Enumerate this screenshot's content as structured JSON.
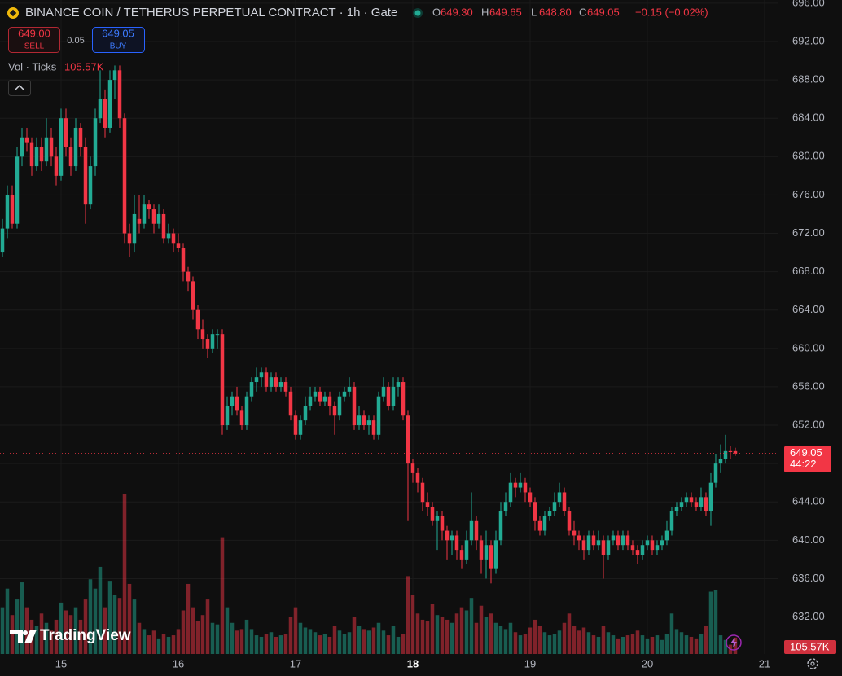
{
  "chart_data": {
    "type": "candlestick",
    "title": "BINANCE COIN / TETHERUS PERPETUAL CONTRACT · 1h · Gate",
    "ohlc_legend": [
      {
        "key": "O",
        "value": "649.30"
      },
      {
        "key": "H",
        "value": "649.65"
      },
      {
        "key": "L",
        "value": "648.80"
      },
      {
        "key": "C",
        "value": "649.05"
      }
    ],
    "change": "−0.15 (−0.02%)",
    "up_color": "#22ab94",
    "down_color": "#f23645",
    "ylim": [
      628.14,
      696.33
    ],
    "yticks": [
      {
        "value": 632,
        "label": "632.00"
      },
      {
        "value": 636,
        "label": "636.00"
      },
      {
        "value": 640,
        "label": "640.00"
      },
      {
        "value": 644,
        "label": "644.00"
      },
      {
        "value": 648,
        "label": "648.00"
      },
      {
        "value": 652,
        "label": "652.00"
      },
      {
        "value": 656,
        "label": "656.00"
      },
      {
        "value": 660,
        "label": "660.00"
      },
      {
        "value": 664,
        "label": "664.00"
      },
      {
        "value": 668,
        "label": "668.00"
      },
      {
        "value": 672,
        "label": "672.00"
      },
      {
        "value": 676,
        "label": "676.00"
      },
      {
        "value": 680,
        "label": "680.00"
      },
      {
        "value": 684,
        "label": "684.00"
      },
      {
        "value": 688,
        "label": "688.00"
      },
      {
        "value": 692,
        "label": "692.00"
      },
      {
        "value": 696,
        "label": "696.00"
      }
    ],
    "xlim": [
      -0.5,
      158.67
    ],
    "xticks": [
      {
        "value": 12,
        "label": "15"
      },
      {
        "value": 36,
        "label": "16"
      },
      {
        "value": 60,
        "label": "17"
      },
      {
        "value": 84,
        "label": "18",
        "bold": true
      },
      {
        "value": 108,
        "label": "19"
      },
      {
        "value": 132,
        "label": "20"
      },
      {
        "value": 156,
        "label": "21"
      }
    ],
    "grid": true,
    "ohlc": [
      [
        670,
        673.5,
        669.5,
        672.5
      ],
      [
        672.5,
        677,
        671.5,
        676
      ],
      [
        676,
        677,
        672.5,
        673
      ],
      [
        673,
        681,
        672.5,
        680
      ],
      [
        680,
        683,
        679,
        682
      ],
      [
        682,
        683,
        680.5,
        681.5
      ],
      [
        681.5,
        682,
        678,
        679
      ],
      [
        679,
        682,
        678.5,
        681
      ],
      [
        681,
        682,
        678.5,
        679.5
      ],
      [
        679.5,
        684,
        679,
        682
      ],
      [
        682,
        683,
        679,
        680
      ],
      [
        680,
        681,
        677,
        678
      ],
      [
        678,
        685,
        677.5,
        684
      ],
      [
        684,
        685,
        680,
        681
      ],
      [
        681,
        682,
        678,
        679
      ],
      [
        679,
        684,
        678.5,
        683
      ],
      [
        683,
        683.5,
        680,
        681
      ],
      [
        681,
        682,
        673,
        675
      ],
      [
        675,
        680,
        674.5,
        679
      ],
      [
        679,
        685,
        678,
        684
      ],
      [
        684,
        689,
        683.5,
        686
      ],
      [
        686,
        687,
        682,
        683
      ],
      [
        683,
        689,
        682.5,
        688
      ],
      [
        688,
        689.5,
        686,
        689
      ],
      [
        689,
        689.5,
        683,
        684
      ],
      [
        684,
        684.5,
        671,
        672
      ],
      [
        672,
        673,
        669.5,
        671
      ],
      [
        671,
        676,
        670,
        674
      ],
      [
        673.5,
        676,
        672,
        673
      ],
      [
        673,
        676,
        672.5,
        675
      ],
      [
        675,
        675.5,
        673.5,
        674.5
      ],
      [
        674.5,
        675,
        672,
        673
      ],
      [
        673,
        675,
        672.5,
        674
      ],
      [
        674,
        674.5,
        671,
        671.5
      ],
      [
        671.5,
        673,
        671,
        672
      ],
      [
        672,
        672.5,
        670,
        671
      ],
      [
        671,
        672,
        670,
        670.5
      ],
      [
        670.5,
        671,
        667,
        668
      ],
      [
        668,
        668.5,
        666,
        667
      ],
      [
        667,
        667.5,
        663,
        664
      ],
      [
        664,
        664.5,
        661,
        662
      ],
      [
        662,
        663,
        660,
        661
      ],
      [
        661,
        661.5,
        659,
        660
      ],
      [
        660,
        662,
        659.5,
        661.5
      ],
      [
        661.5,
        662,
        660,
        661.5
      ],
      [
        661.5,
        662,
        651,
        652
      ],
      [
        652,
        655,
        651.5,
        654
      ],
      [
        654,
        655.5,
        653,
        655
      ],
      [
        655,
        656,
        653,
        653.5
      ],
      [
        653.5,
        654,
        651.5,
        652
      ],
      [
        652,
        655.5,
        651.5,
        655
      ],
      [
        655,
        657,
        654.5,
        656.5
      ],
      [
        656.5,
        658,
        655.5,
        657
      ],
      [
        657,
        658,
        656,
        657.5
      ],
      [
        657.5,
        658,
        655.5,
        656
      ],
      [
        656,
        657.5,
        655.5,
        657
      ],
      [
        657,
        657.5,
        655.5,
        656
      ],
      [
        656,
        657,
        655.5,
        656.5
      ],
      [
        656.5,
        657,
        655,
        655.5
      ],
      [
        655.5,
        656,
        652.5,
        653
      ],
      [
        653,
        653.5,
        650.5,
        651
      ],
      [
        651,
        653,
        650.5,
        652.5
      ],
      [
        652.5,
        655,
        652,
        654
      ],
      [
        654,
        656,
        653.5,
        655
      ],
      [
        655,
        656,
        654.5,
        655.5
      ],
      [
        655.5,
        656,
        654,
        654.5
      ],
      [
        654.5,
        655.5,
        654,
        655
      ],
      [
        655,
        655.5,
        653,
        654
      ],
      [
        654,
        654.5,
        651,
        653
      ],
      [
        653,
        655.5,
        652.5,
        655
      ],
      [
        655,
        656,
        654.5,
        655.5
      ],
      [
        655.5,
        657,
        655,
        656
      ],
      [
        656,
        656.5,
        651.5,
        652
      ],
      [
        652,
        654,
        651.5,
        653
      ],
      [
        653,
        653.5,
        651.5,
        652
      ],
      [
        652,
        653,
        651,
        652.5
      ],
      [
        652.5,
        653,
        650.5,
        651
      ],
      [
        651,
        655.5,
        650.5,
        655
      ],
      [
        655,
        657,
        654.5,
        656
      ],
      [
        656,
        656.5,
        653.5,
        654
      ],
      [
        654,
        657,
        653.5,
        656
      ],
      [
        656,
        657,
        655,
        656.5
      ],
      [
        656.5,
        657,
        652.5,
        653
      ],
      [
        653,
        653.5,
        642,
        648
      ],
      [
        648,
        648.5,
        646,
        647
      ],
      [
        647,
        647.5,
        645,
        646
      ],
      [
        646,
        646.5,
        643,
        644
      ],
      [
        644,
        645,
        642.5,
        643.5
      ],
      [
        643.5,
        644,
        641.5,
        642
      ],
      [
        642,
        643,
        639,
        642.5
      ],
      [
        642.5,
        643,
        640,
        641
      ],
      [
        641,
        641.5,
        638,
        640
      ],
      [
        640,
        641,
        638.5,
        640.5
      ],
      [
        640.5,
        641,
        638,
        639
      ],
      [
        639,
        639.5,
        637,
        638
      ],
      [
        638,
        641,
        637.5,
        640
      ],
      [
        640,
        645,
        639.5,
        642
      ],
      [
        642,
        642.5,
        639,
        640
      ],
      [
        640,
        640.5,
        636.5,
        638
      ],
      [
        638,
        641,
        636,
        639.5
      ],
      [
        639.5,
        640,
        635.5,
        637
      ],
      [
        637,
        641,
        636.5,
        640
      ],
      [
        640,
        644,
        639.5,
        643
      ],
      [
        643,
        645,
        642.5,
        644
      ],
      [
        644,
        647,
        643.5,
        646
      ],
      [
        646,
        646.5,
        644.5,
        645.5
      ],
      [
        645.5,
        647,
        645,
        646
      ],
      [
        646,
        646.5,
        644,
        645
      ],
      [
        645,
        645.5,
        643.5,
        644
      ],
      [
        644,
        644.5,
        641,
        642
      ],
      [
        642,
        642.5,
        640.5,
        641
      ],
      [
        641,
        643,
        640.5,
        642.5
      ],
      [
        642.5,
        643.5,
        642,
        643
      ],
      [
        643,
        645,
        642.5,
        644
      ],
      [
        644,
        646,
        643.5,
        645
      ],
      [
        645,
        645.5,
        642.5,
        643
      ],
      [
        643,
        643.5,
        640.5,
        641
      ],
      [
        641,
        642,
        639.5,
        640.5
      ],
      [
        640.5,
        641,
        639,
        640
      ],
      [
        640,
        640.5,
        638,
        639
      ],
      [
        639,
        641,
        638.5,
        640.5
      ],
      [
        640.5,
        641,
        639,
        639.5
      ],
      [
        639.5,
        641,
        639,
        640
      ],
      [
        640,
        640.5,
        636,
        638.5
      ],
      [
        638.5,
        640.5,
        638,
        640
      ],
      [
        640,
        641,
        639.5,
        640.5
      ],
      [
        640.5,
        641,
        639,
        639.5
      ],
      [
        639.5,
        641,
        639,
        640.5
      ],
      [
        640.5,
        641,
        639,
        639.5
      ],
      [
        639.5,
        640,
        638.5,
        639
      ],
      [
        639,
        639.5,
        637.5,
        638.5
      ],
      [
        638.5,
        640,
        638,
        639.5
      ],
      [
        639.5,
        640.5,
        639,
        640
      ],
      [
        640,
        640.5,
        638.5,
        639
      ],
      [
        639,
        640,
        638.5,
        639.5
      ],
      [
        639.5,
        640.5,
        639,
        640
      ],
      [
        640,
        642,
        639.5,
        641
      ],
      [
        641,
        643.5,
        640.5,
        643
      ],
      [
        643,
        644,
        642.5,
        643.5
      ],
      [
        643.5,
        644.5,
        643,
        644
      ],
      [
        644,
        645,
        643.5,
        644.5
      ],
      [
        644.5,
        645,
        643.5,
        644
      ],
      [
        644,
        644.5,
        643,
        643.5
      ],
      [
        643.5,
        645.5,
        643,
        644.5
      ],
      [
        644.5,
        645,
        642.5,
        643
      ],
      [
        643,
        647,
        641.5,
        646
      ],
      [
        646,
        649,
        645.5,
        648
      ],
      [
        648,
        650,
        647,
        648.5
      ],
      [
        648.5,
        651,
        648,
        649.3
      ],
      [
        649.3,
        649.8,
        648.5,
        649.2
      ],
      [
        649.3,
        649.65,
        648.8,
        649.05
      ]
    ],
    "volume": {
      "label": "Vol · Ticks",
      "last_value_label": "105.57K",
      "ylim": [
        0,
        4200000
      ],
      "values": [
        300000,
        420000,
        250000,
        350000,
        460000,
        300000,
        220000,
        180000,
        260000,
        200000,
        150000,
        220000,
        330000,
        280000,
        250000,
        300000,
        220000,
        350000,
        480000,
        420000,
        560000,
        300000,
        470000,
        380000,
        360000,
        1030000,
        450000,
        350000,
        200000,
        160000,
        120000,
        150000,
        100000,
        130000,
        110000,
        120000,
        160000,
        280000,
        450000,
        300000,
        210000,
        250000,
        350000,
        200000,
        190000,
        750000,
        300000,
        200000,
        150000,
        160000,
        220000,
        160000,
        120000,
        110000,
        130000,
        140000,
        110000,
        120000,
        130000,
        240000,
        300000,
        200000,
        170000,
        160000,
        140000,
        120000,
        130000,
        110000,
        180000,
        150000,
        130000,
        140000,
        240000,
        180000,
        160000,
        150000,
        170000,
        200000,
        150000,
        120000,
        180000,
        110000,
        130000,
        500000,
        380000,
        260000,
        220000,
        210000,
        320000,
        250000,
        240000,
        220000,
        200000,
        260000,
        300000,
        280000,
        360000,
        200000,
        310000,
        240000,
        260000,
        200000,
        180000,
        160000,
        200000,
        140000,
        120000,
        130000,
        170000,
        220000,
        180000,
        140000,
        120000,
        130000,
        150000,
        200000,
        260000,
        180000,
        150000,
        170000,
        140000,
        120000,
        110000,
        180000,
        140000,
        120000,
        100000,
        110000,
        120000,
        130000,
        150000,
        120000,
        100000,
        110000,
        120000,
        90000,
        130000,
        260000,
        160000,
        140000,
        120000,
        110000,
        100000,
        130000,
        180000,
        400000,
        410000,
        120000,
        90000,
        60000,
        105570
      ]
    },
    "last_price": {
      "label": "649.05",
      "countdown": "44:22"
    }
  },
  "trade": {
    "sell": {
      "price": "649.00",
      "label": "SELL"
    },
    "spread": "0.05",
    "buy": {
      "price": "649.05",
      "label": "BUY"
    }
  },
  "branding": "TradingView"
}
